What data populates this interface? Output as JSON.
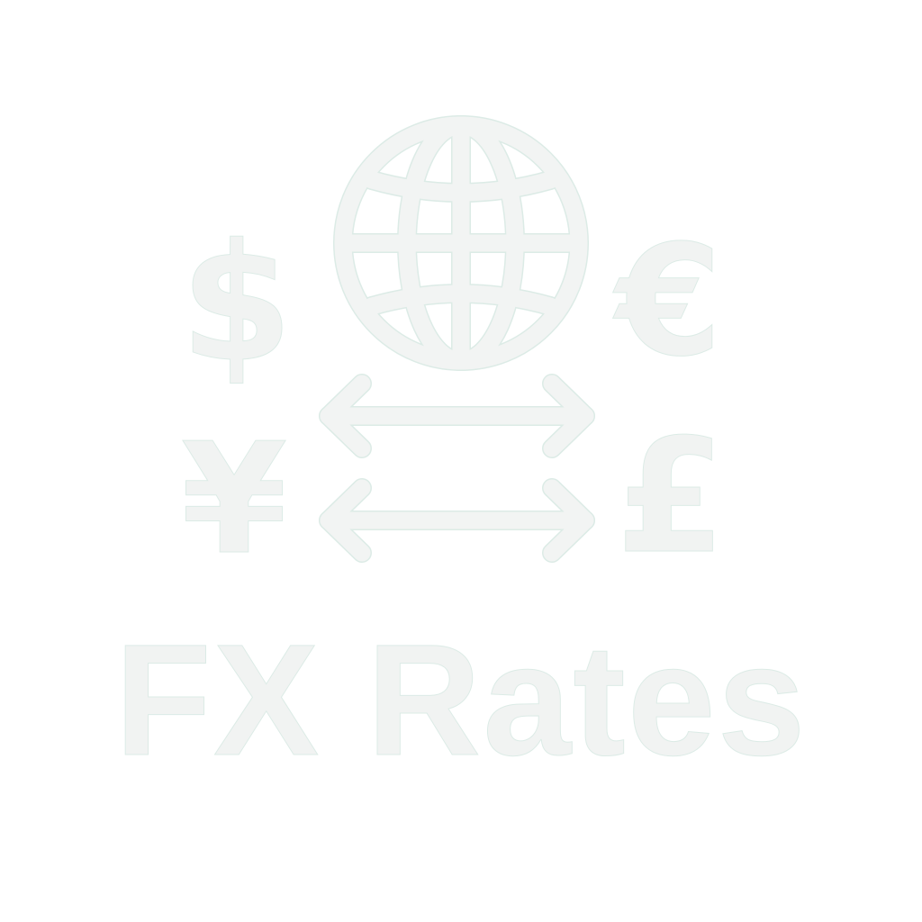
{
  "colors": {
    "background": "#ffffff",
    "fill": "#f1f3f2",
    "outline": "#dcebe6"
  },
  "icon": {
    "globe": "globe-icon",
    "exchange": "exchange-arrows-icon"
  },
  "currencies": {
    "dollar": "$",
    "euro": "€",
    "yen": "¥",
    "pound": "£"
  },
  "title": "FX Rates"
}
